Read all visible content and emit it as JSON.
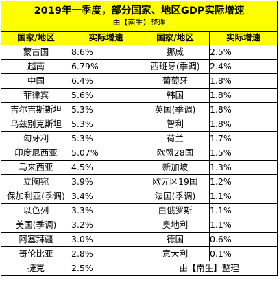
{
  "title": "2019年一季度，部分国家、地区GDP实际增速",
  "subtitle": "由【南生】整理",
  "headers": [
    "国家/地区",
    "实际增速",
    "国家/地区",
    "实际增速"
  ],
  "left_rows": [
    {
      "country": "蒙古国",
      "value": "8.6%"
    },
    {
      "country": "越南",
      "value": "6.79%"
    },
    {
      "country": "中国",
      "value": "6.4%"
    },
    {
      "country": "菲律宾",
      "value": "5.6%"
    },
    {
      "country": "吉尔吉斯斯坦",
      "value": "5.3%"
    },
    {
      "country": "乌兹别克斯坦",
      "value": "5.3%"
    },
    {
      "country": "匈牙利",
      "value": "5.3%"
    },
    {
      "country": "印度尼西亚",
      "value": "5.07%"
    },
    {
      "country": "马来西亚",
      "value": "4.5%"
    },
    {
      "country": "立陶宛",
      "value": "3.9%"
    },
    {
      "country": "保加利亚(季调)",
      "value": "3.4%"
    },
    {
      "country": "以色列",
      "value": "3.3%"
    },
    {
      "country": "美国(季调)",
      "value": "3.2%"
    },
    {
      "country": "阿塞拜疆",
      "value": "3.0%"
    },
    {
      "country": "哥伦比亚",
      "value": "2.8%"
    },
    {
      "country": "捷克",
      "value": "2.5%"
    }
  ],
  "right_rows": [
    {
      "country": "挪威",
      "value": "2.5%"
    },
    {
      "country": "西班牙(季调)",
      "value": "2.4%"
    },
    {
      "country": "葡萄牙",
      "value": "1.8%"
    },
    {
      "country": "韩国",
      "value": "1.8%"
    },
    {
      "country": "英国(季调)",
      "value": "1.8%"
    },
    {
      "country": "智利",
      "value": "1.8%"
    },
    {
      "country": "荷兰",
      "value": "1.7%"
    },
    {
      "country": "欧盟28国",
      "value": "1.5%"
    },
    {
      "country": "新加坡",
      "value": "1.3%"
    },
    {
      "country": "欧元区19国",
      "value": "1.2%"
    },
    {
      "country": "法国(季调)",
      "value": "1.1%"
    },
    {
      "country": "白俄罗斯",
      "value": "1.1%"
    },
    {
      "country": "奥地利",
      "value": "1.1%"
    },
    {
      "country": "德国",
      "value": "0.6%"
    },
    {
      "country": "意大利",
      "value": "0.1%"
    }
  ],
  "footer_credit": "由【南生】整理",
  "colors": {
    "header_bg": "#ffff00",
    "border": "#000000",
    "text": "#000000"
  }
}
